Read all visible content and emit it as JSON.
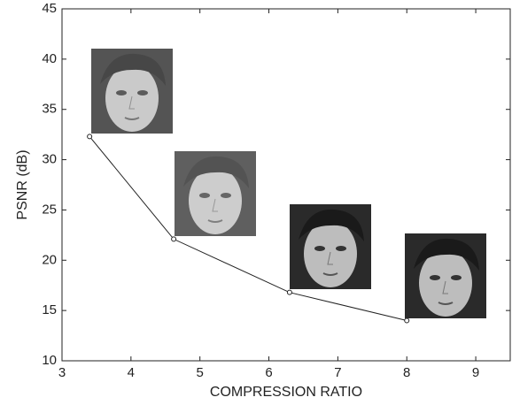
{
  "chart_data": {
    "type": "line",
    "x_label": "COMPRESSION RATIO",
    "y_label": "PSNR (dB)",
    "x": [
      3.4,
      4.62,
      6.3,
      8.0
    ],
    "series": [
      {
        "color": "#222222",
        "values": [
          32.3,
          22.1,
          16.8,
          14.0
        ]
      }
    ],
    "xlim": [
      3,
      9.5
    ],
    "xticks": [
      3,
      4,
      5,
      6,
      7,
      8,
      9
    ],
    "ylim": [
      10,
      45
    ],
    "yticks": [
      10,
      15,
      20,
      25,
      30,
      35,
      40,
      45
    ],
    "grid": false
  }
}
